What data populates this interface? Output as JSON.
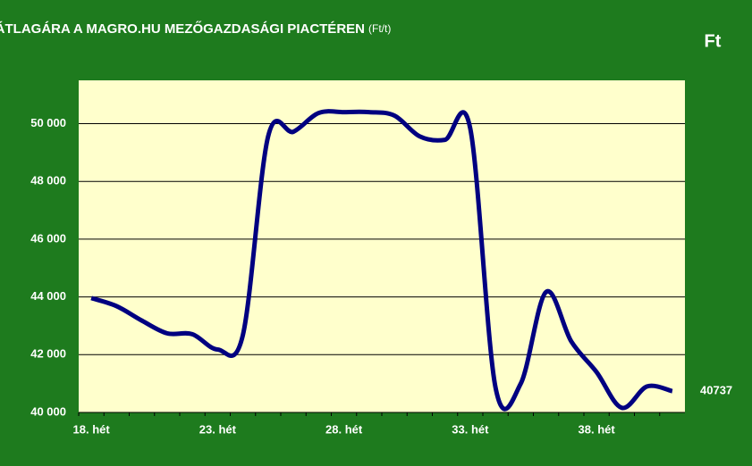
{
  "chart_data": {
    "type": "line",
    "title": "A KUKORICA ÁTLAGÁRA A MAGRO.HU MEZŐGAZDASÁGI PIACTÉREN",
    "title_unit": "(Ft/t)",
    "y_label": "Ft",
    "categories": [
      "18. hét",
      null,
      null,
      null,
      null,
      "23. hét",
      null,
      null,
      null,
      null,
      "28. hét",
      null,
      null,
      null,
      null,
      "33. hét",
      null,
      null,
      null,
      null,
      "38. hét",
      null,
      null,
      null
    ],
    "series": [
      {
        "color": "#000080",
        "values": [
          43960,
          43680,
          43180,
          42740,
          42710,
          42180,
          42680,
          49560,
          49720,
          50370,
          50400,
          50400,
          50280,
          49560,
          49440,
          49840,
          40870,
          41000,
          44170,
          42460,
          41400,
          40160,
          40900,
          40737
        ]
      }
    ],
    "ylim": [
      40000,
      51500
    ],
    "yticks": [
      {
        "value": 40000,
        "label": "40 000"
      },
      {
        "value": 42000,
        "label": "42 000"
      },
      {
        "value": 44000,
        "label": "44 000"
      },
      {
        "value": 46000,
        "label": "46 000"
      },
      {
        "value": 48000,
        "label": "48 000"
      },
      {
        "value": 50000,
        "label": "50 000"
      }
    ],
    "grid": true
  }
}
